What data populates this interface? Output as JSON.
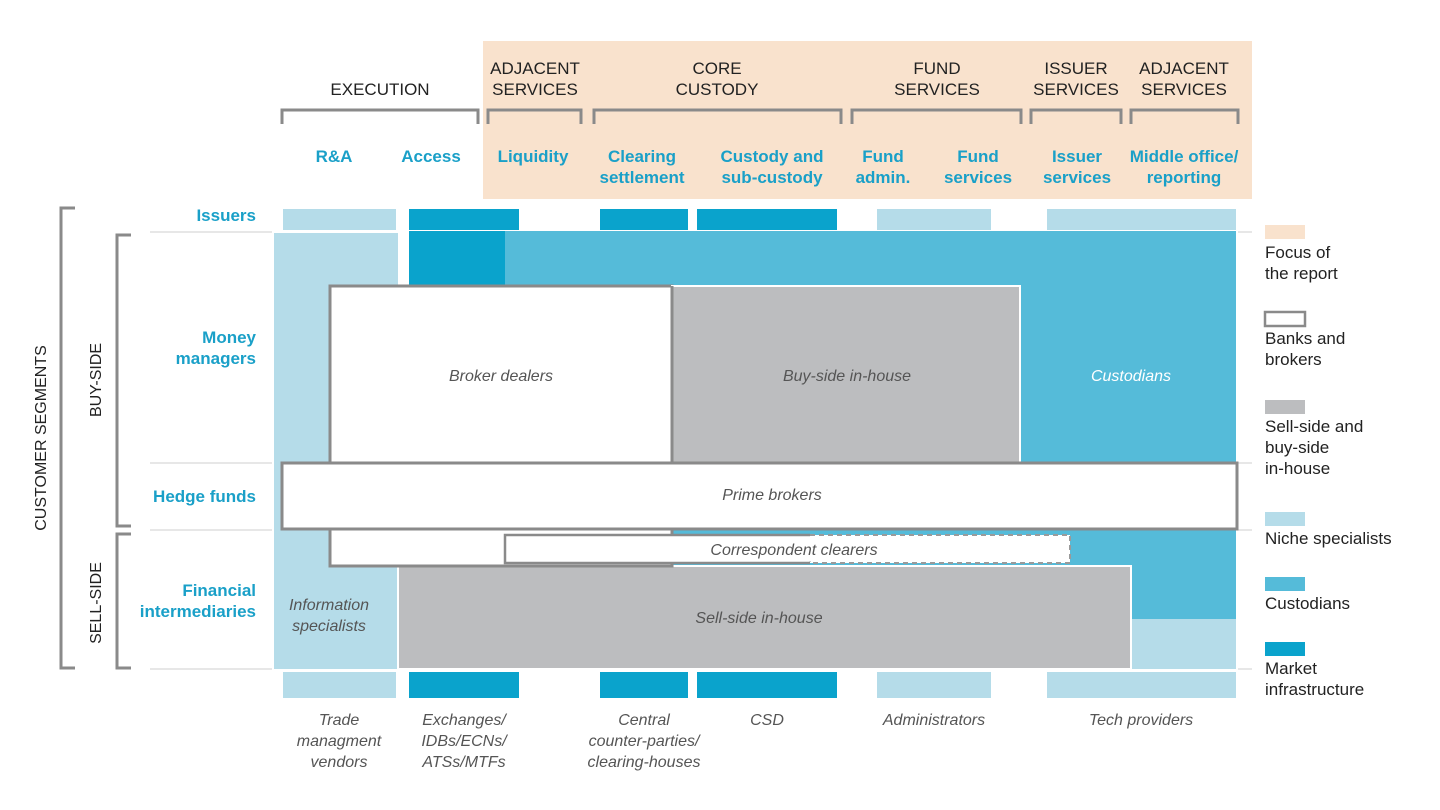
{
  "colors": {
    "focus": "#f9e2cd",
    "niche": "#b5dce9",
    "custodians": "#55bbd9",
    "market_infrastructure": "#0aa3cc",
    "in_house": "#bcbdbf",
    "accent_text": "#1aa0c8",
    "bracket": "#8a8a8a"
  },
  "header_groups": {
    "execution": [
      "EXECUTION"
    ],
    "adjacent_services_1": [
      "ADJACENT",
      "SERVICES"
    ],
    "core_custody": [
      "CORE",
      "CUSTODY"
    ],
    "fund_services": [
      "FUND",
      "SERVICES"
    ],
    "issuer_services": [
      "ISSUER",
      "SERVICES"
    ],
    "adjacent_services_2": [
      "ADJACENT",
      "SERVICES"
    ]
  },
  "columns": {
    "ra": [
      "R&A"
    ],
    "access": [
      "Access"
    ],
    "liquidity": [
      "Liquidity"
    ],
    "clearing": [
      "Clearing",
      "settlement"
    ],
    "custody": [
      "Custody and",
      "sub-custody"
    ],
    "fund_admin": [
      "Fund",
      "admin."
    ],
    "fund_services": [
      "Fund",
      "services"
    ],
    "issuer_services": [
      "Issuer",
      "services"
    ],
    "middle_office": [
      "Middle office/",
      "reporting"
    ]
  },
  "segments": {
    "issuers": [
      "Issuers"
    ],
    "money_managers": [
      "Money",
      "managers"
    ],
    "hedge_funds": [
      "Hedge funds"
    ],
    "financial_intermediaries": [
      "Financial",
      "intermediaries"
    ],
    "customer_segments": "CUSTOMER SEGMENTS",
    "buy_side": "BUY-SIDE",
    "sell_side": "SELL-SIDE"
  },
  "boxes": {
    "broker_dealers": "Broker dealers",
    "buy_side_in_house": "Buy-side in-house",
    "custodians": "Custodians",
    "prime_brokers": "Prime brokers",
    "correspondent_clearers": "Correspondent clearers",
    "information_specialists": [
      "Information",
      "specialists"
    ],
    "sell_side_in_house": "Sell-side in-house"
  },
  "bottom_labels": {
    "trade_management": [
      "Trade",
      "managment",
      "vendors"
    ],
    "exchanges": [
      "Exchanges/",
      "IDBs/ECNs/",
      "ATSs/MTFs"
    ],
    "ccp": [
      "Central",
      "counter-parties/",
      "clearing-houses"
    ],
    "csd": [
      "CSD"
    ],
    "administrators": [
      "Administrators"
    ],
    "tech_providers": [
      "Tech providers"
    ]
  },
  "legend": {
    "focus": [
      "Focus of",
      "the report"
    ],
    "banks": [
      "Banks and",
      "brokers"
    ],
    "in_house": [
      "Sell-side and",
      "buy-side",
      "in-house"
    ],
    "niche": [
      "Niche specialists"
    ],
    "custodians": [
      "Custodians"
    ],
    "market": [
      "Market",
      "infrastructure"
    ]
  }
}
